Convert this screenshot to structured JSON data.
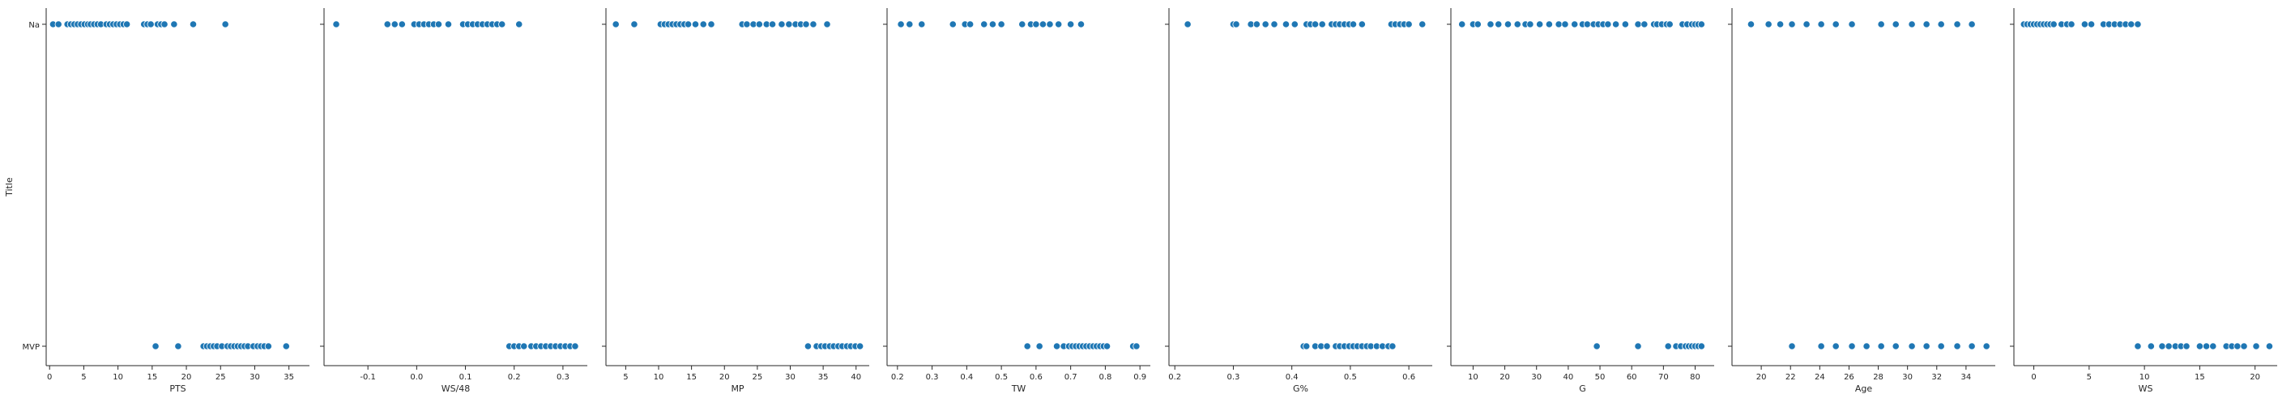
{
  "chart_data": [
    {
      "type": "scatter",
      "xlabel": "PTS",
      "ylabel": "Title",
      "categories": [
        "Na",
        "MVP"
      ],
      "xlim": [
        -0.5,
        38
      ],
      "xticks": [
        0,
        5,
        10,
        15,
        20,
        25,
        30,
        35
      ],
      "tick_format": "int",
      "points": {
        "Na": [
          0.5,
          1.3,
          2.6,
          3.1,
          3.6,
          4.1,
          4.6,
          5.1,
          5.6,
          6.0,
          6.5,
          7.0,
          7.5,
          8.3,
          8.8,
          9.3,
          9.8,
          10.3,
          10.8,
          11.3,
          13.8,
          14.3,
          14.8,
          15.8,
          16.3,
          16.8,
          18.2,
          21.0,
          25.7
        ],
        "MVP": [
          15.5,
          18.8,
          22.5,
          23.0,
          23.5,
          24.0,
          24.5,
          25.2,
          26.0,
          26.5,
          27.0,
          27.5,
          28.0,
          28.5,
          29.0,
          29.8,
          30.4,
          30.9,
          31.4,
          32.0,
          34.6
        ]
      }
    },
    {
      "type": "scatter",
      "xlabel": "WS/48",
      "ylabel": "",
      "categories": [
        "Na",
        "MVP"
      ],
      "xlim": [
        -0.19,
        0.35
      ],
      "xticks": [
        -0.1,
        0.0,
        0.1,
        0.2,
        0.3
      ],
      "tick_format": "1dp",
      "points": {
        "Na": [
          -0.165,
          -0.06,
          -0.045,
          -0.03,
          -0.005,
          0.005,
          0.015,
          0.025,
          0.035,
          0.045,
          0.065,
          0.095,
          0.105,
          0.115,
          0.125,
          0.135,
          0.145,
          0.155,
          0.165,
          0.175,
          0.21
        ],
        "MVP": [
          0.19,
          0.2,
          0.21,
          0.22,
          0.235,
          0.245,
          0.255,
          0.265,
          0.275,
          0.285,
          0.295,
          0.305,
          0.315,
          0.325
        ]
      }
    },
    {
      "type": "scatter",
      "xlabel": "MP",
      "ylabel": "",
      "categories": [
        "Na",
        "MVP"
      ],
      "xlim": [
        2,
        42
      ],
      "xticks": [
        5,
        10,
        15,
        20,
        25,
        30,
        35,
        40
      ],
      "tick_format": "int",
      "points": {
        "Na": [
          3.5,
          6.3,
          10.3,
          10.9,
          11.5,
          12.1,
          12.7,
          13.3,
          13.9,
          14.5,
          15.6,
          16.8,
          18.0,
          22.7,
          23.4,
          24.4,
          25.3,
          26.4,
          27.3,
          28.7,
          29.8,
          30.8,
          31.6,
          32.4,
          33.5,
          35.6
        ],
        "MVP": [
          32.7,
          34.0,
          34.7,
          35.3,
          36.0,
          36.6,
          37.3,
          37.9,
          38.6,
          39.2,
          39.9,
          40.6
        ]
      }
    },
    {
      "type": "scatter",
      "xlabel": "TW",
      "ylabel": "",
      "categories": [
        "Na",
        "MVP"
      ],
      "xlim": [
        0.17,
        0.93
      ],
      "xticks": [
        0.2,
        0.3,
        0.4,
        0.5,
        0.6,
        0.7,
        0.8,
        0.9
      ],
      "tick_format": "1dp",
      "points": {
        "Na": [
          0.21,
          0.235,
          0.27,
          0.36,
          0.395,
          0.41,
          0.45,
          0.475,
          0.5,
          0.56,
          0.585,
          0.6,
          0.62,
          0.64,
          0.665,
          0.7,
          0.73
        ],
        "MVP": [
          0.575,
          0.61,
          0.66,
          0.68,
          0.695,
          0.705,
          0.715,
          0.725,
          0.735,
          0.745,
          0.755,
          0.765,
          0.775,
          0.785,
          0.795,
          0.805,
          0.88,
          0.89
        ]
      }
    },
    {
      "type": "scatter",
      "xlabel": "G%",
      "ylabel": "",
      "categories": [
        "Na",
        "MVP"
      ],
      "xlim": [
        0.19,
        0.64
      ],
      "xticks": [
        0.2,
        0.3,
        0.4,
        0.5,
        0.6
      ],
      "tick_format": "1dp",
      "points": {
        "Na": [
          0.222,
          0.3,
          0.305,
          0.33,
          0.34,
          0.355,
          0.37,
          0.39,
          0.405,
          0.425,
          0.432,
          0.44,
          0.452,
          0.468,
          0.475,
          0.482,
          0.49,
          0.498,
          0.505,
          0.52,
          0.57,
          0.577,
          0.585,
          0.592,
          0.6,
          0.623
        ],
        "MVP": [
          0.42,
          0.425,
          0.44,
          0.45,
          0.46,
          0.475,
          0.482,
          0.49,
          0.498,
          0.505,
          0.512,
          0.52,
          0.528,
          0.535,
          0.545,
          0.555,
          0.565,
          0.572
        ]
      }
    },
    {
      "type": "scatter",
      "xlabel": "G",
      "ylabel": "",
      "categories": [
        "Na",
        "MVP"
      ],
      "xlim": [
        3,
        86
      ],
      "xticks": [
        10,
        20,
        30,
        40,
        50,
        60,
        70,
        80
      ],
      "tick_format": "int",
      "points": {
        "Na": [
          6.5,
          10,
          11.5,
          15.5,
          18,
          21,
          24,
          26.5,
          28,
          31,
          34,
          37,
          39,
          42,
          44.5,
          46,
          48,
          49.5,
          51,
          52.5,
          55,
          58,
          62,
          64,
          67,
          68,
          69.5,
          71,
          72,
          76,
          77.5,
          79,
          80,
          81,
          82
        ],
        "MVP": [
          49,
          62,
          71.5,
          74,
          75.5,
          77,
          78,
          79,
          80,
          81,
          82
        ]
      }
    },
    {
      "type": "scatter",
      "xlabel": "Age",
      "ylabel": "",
      "categories": [
        "Na",
        "MVP"
      ],
      "xlim": [
        18,
        36
      ],
      "xticks": [
        20,
        22,
        24,
        26,
        28,
        30,
        32,
        34
      ],
      "tick_format": "int",
      "points": {
        "Na": [
          19.3,
          20.5,
          21.3,
          22.1,
          23.1,
          24.1,
          25.1,
          26.2,
          28.2,
          29.2,
          30.3,
          31.3,
          32.3,
          33.4,
          34.4
        ],
        "MVP": [
          22.1,
          24.1,
          25.1,
          26.2,
          27.2,
          28.2,
          29.2,
          30.3,
          31.3,
          32.3,
          33.4,
          34.4,
          35.4
        ]
      }
    },
    {
      "type": "scatter",
      "xlabel": "WS",
      "ylabel": "",
      "categories": [
        "Na",
        "MVP"
      ],
      "xlim": [
        -1.8,
        22
      ],
      "xticks": [
        0,
        5,
        10,
        15,
        20
      ],
      "tick_format": "int",
      "points": {
        "Na": [
          -0.9,
          -0.6,
          -0.3,
          0.0,
          0.3,
          0.6,
          0.9,
          1.2,
          1.5,
          1.8,
          2.5,
          3.0,
          3.4,
          4.6,
          5.2,
          6.3,
          6.8,
          7.3,
          7.8,
          8.3,
          8.8,
          9.4
        ],
        "MVP": [
          9.4,
          10.6,
          11.6,
          12.2,
          12.8,
          13.3,
          13.8,
          15.0,
          15.6,
          16.2,
          17.4,
          17.9,
          18.4,
          19.0,
          20.1,
          21.3
        ]
      }
    }
  ],
  "colors": {
    "point": "#1f77b4",
    "axis": "#262626"
  }
}
